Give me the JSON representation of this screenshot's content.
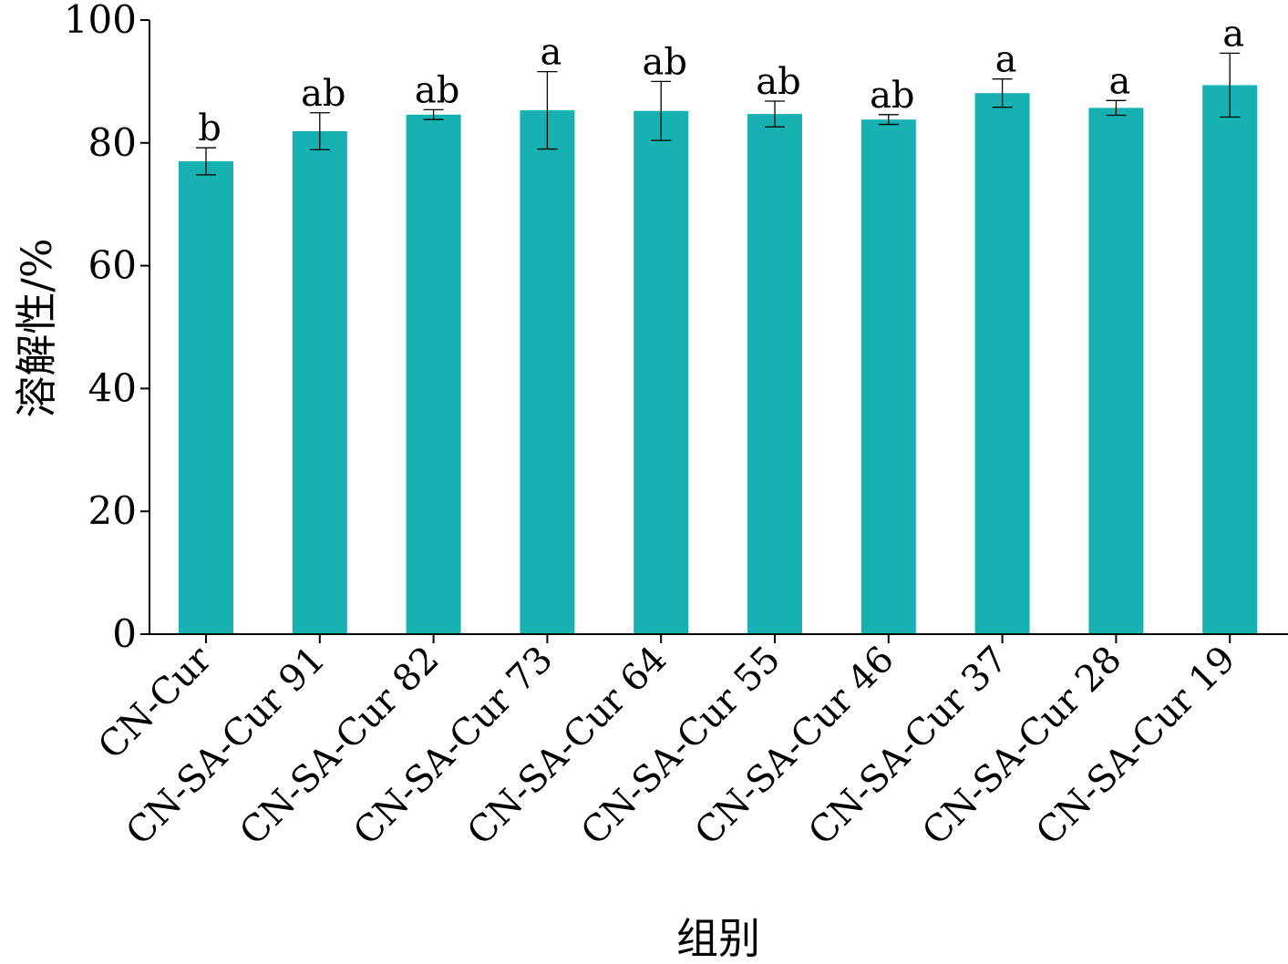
{
  "chart_data": {
    "type": "bar",
    "title": "",
    "xlabel": "组别",
    "ylabel": "溶解性/%",
    "ylim": [
      0,
      100
    ],
    "yticks": [
      0,
      20,
      40,
      60,
      80,
      100
    ],
    "grid": false,
    "bar_color": "#17b1b2",
    "categories": [
      "CN-Cur",
      "CN-SA-Cur 91",
      "CN-SA-Cur 82",
      "CN-SA-Cur 73",
      "CN-SA-Cur 64",
      "CN-SA-Cur 55",
      "CN-SA-Cur 46",
      "CN-SA-Cur 37",
      "CN-SA-Cur 28",
      "CN-SA-Cur 19"
    ],
    "values": [
      77.0,
      81.9,
      84.6,
      85.3,
      85.2,
      84.7,
      83.8,
      88.1,
      85.7,
      89.4
    ],
    "errors": [
      2.2,
      3.0,
      0.8,
      6.3,
      4.8,
      2.1,
      0.8,
      2.3,
      1.2,
      5.2
    ],
    "significance": [
      "b",
      "ab",
      "ab",
      "a",
      "ab",
      "ab",
      "ab",
      "a",
      "a",
      "a"
    ]
  }
}
